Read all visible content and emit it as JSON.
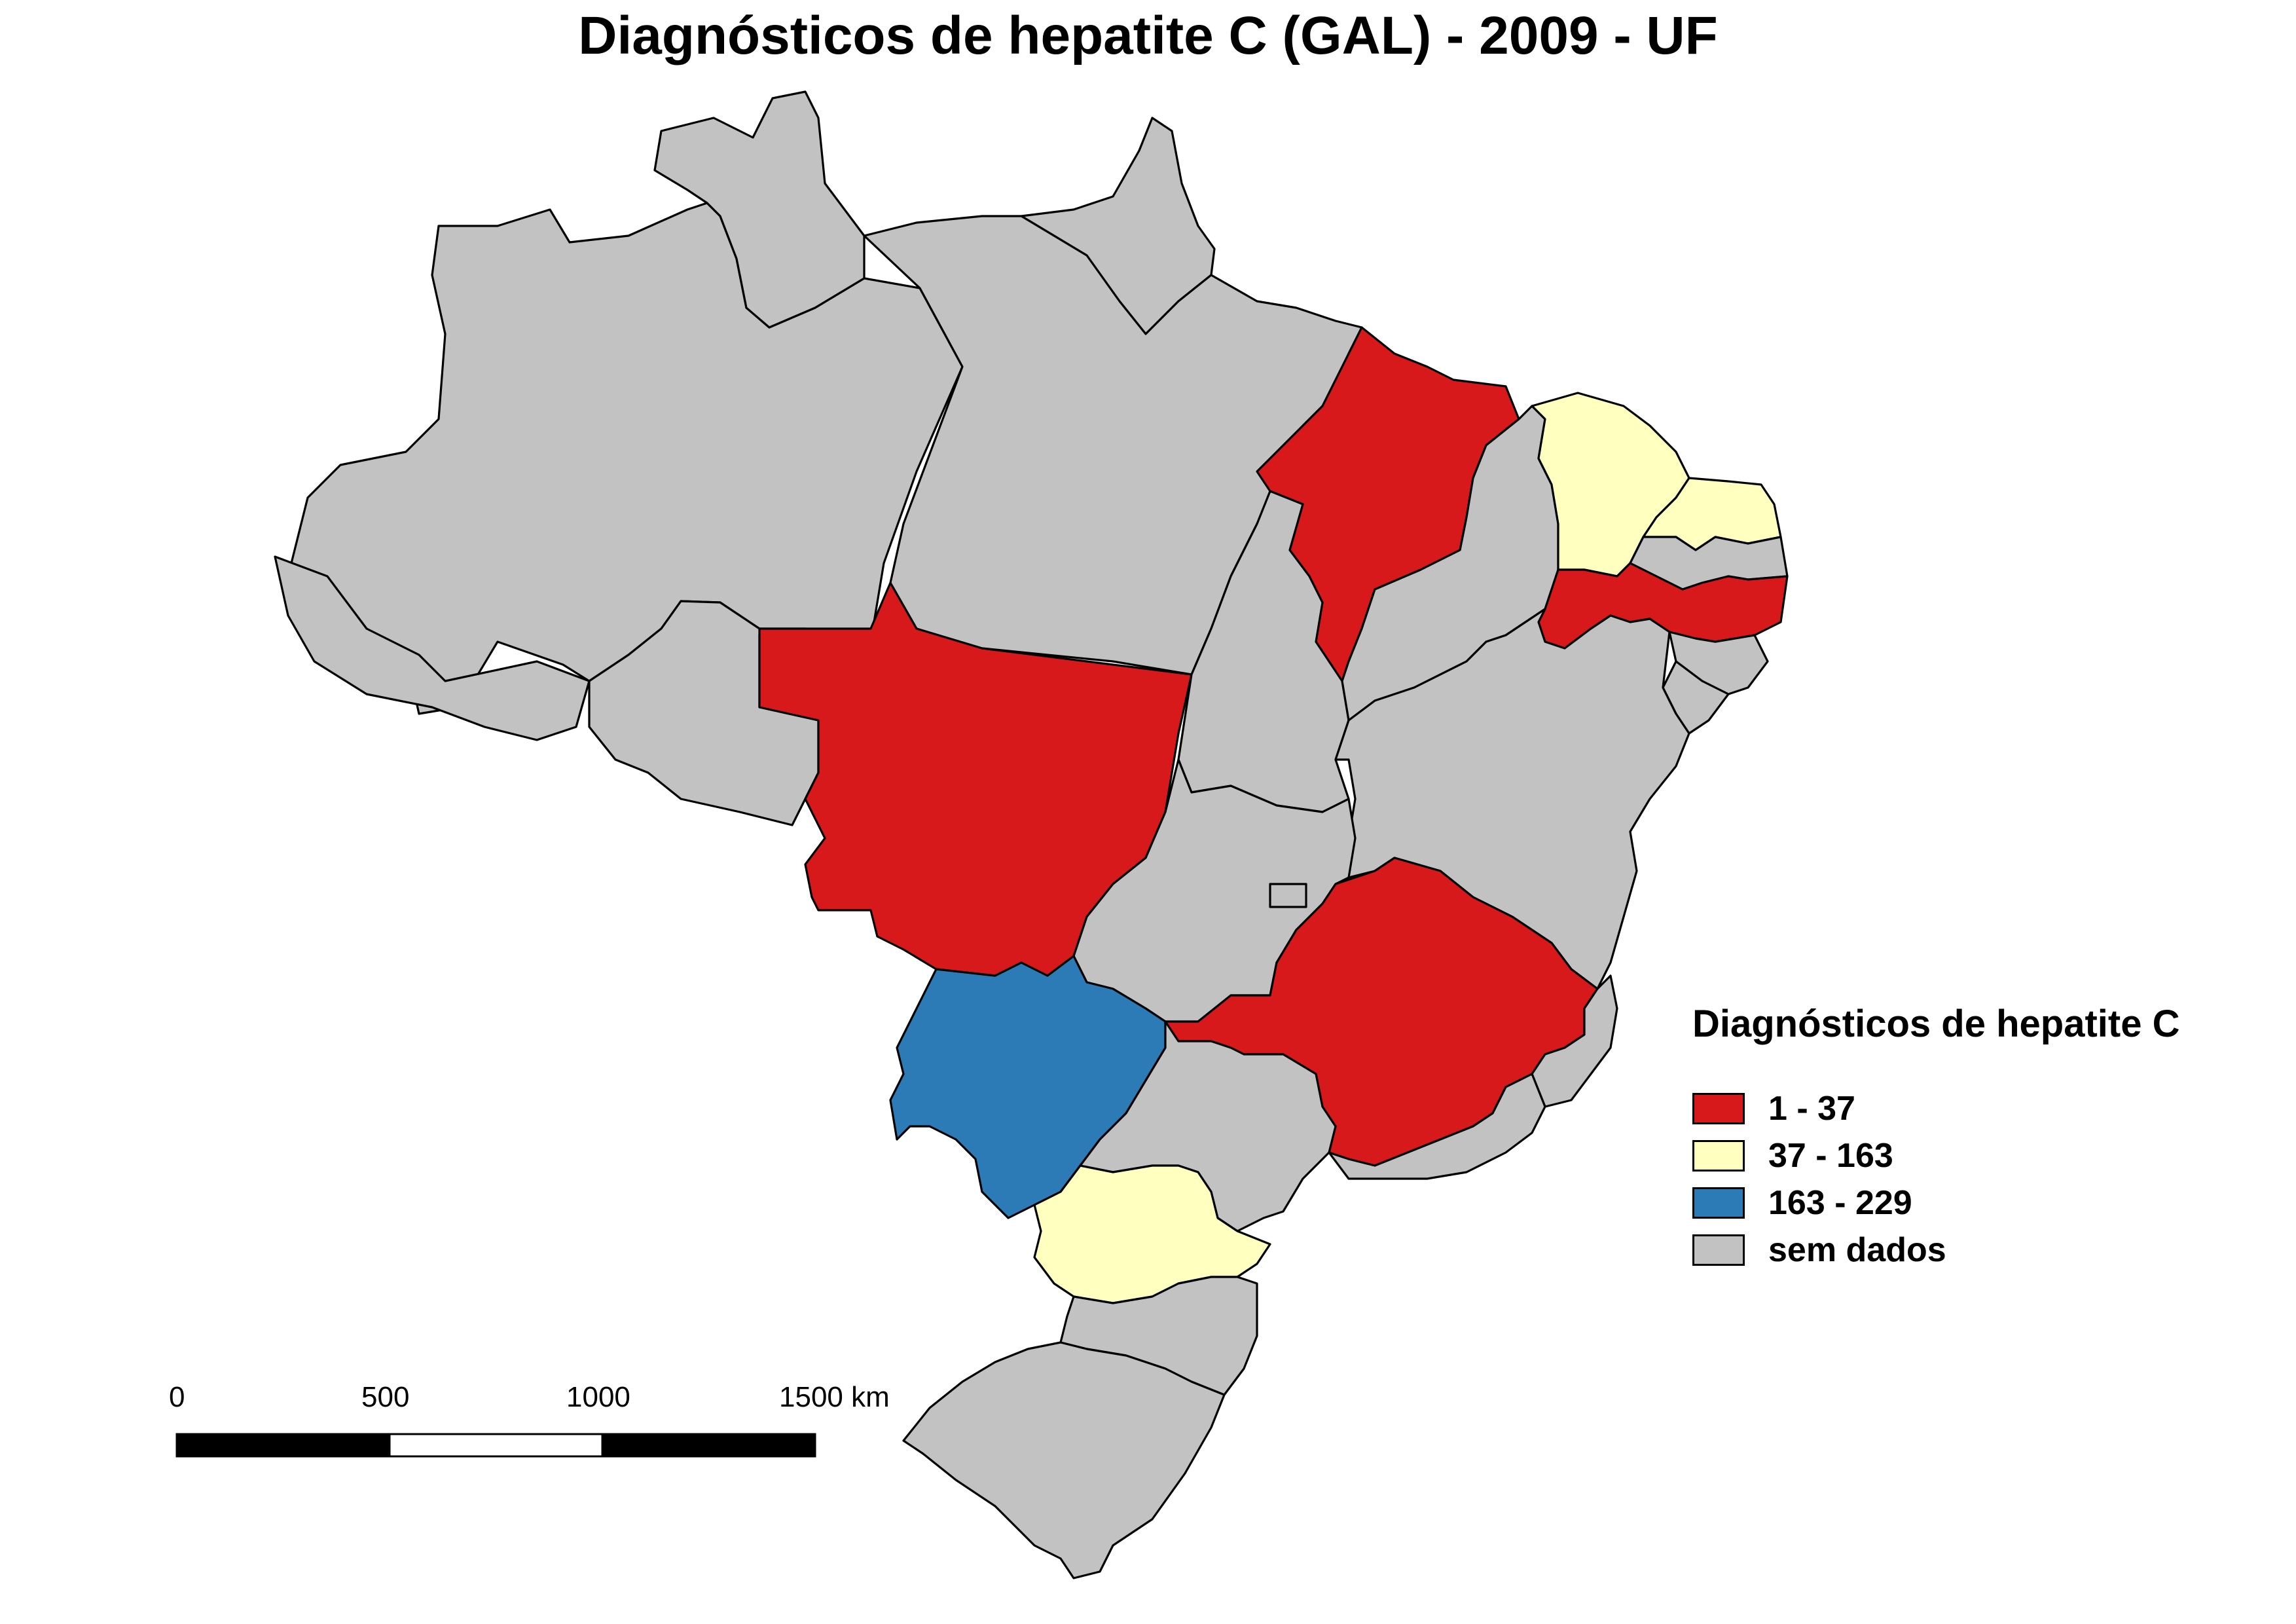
{
  "title": "Diagnósticos de hepatite C (GAL) - 2009 - UF",
  "legend": {
    "title": "Diagnósticos de hepatite C",
    "items": [
      {
        "label": "1 - 37",
        "color": "#d7191c"
      },
      {
        "label": "37 - 163",
        "color": "#ffffbf"
      },
      {
        "label": "163 - 229",
        "color": "#2c7bb6"
      },
      {
        "label": "sem dados",
        "color": "#c2c2c2"
      }
    ]
  },
  "scale_bar": {
    "labels": [
      "0",
      "500",
      "1000",
      "1500 km"
    ]
  },
  "states": [
    {
      "uf": "AM",
      "class": "sem dados"
    },
    {
      "uf": "RR",
      "class": "sem dados"
    },
    {
      "uf": "AP",
      "class": "sem dados"
    },
    {
      "uf": "PA",
      "class": "sem dados"
    },
    {
      "uf": "AC",
      "class": "sem dados"
    },
    {
      "uf": "RO",
      "class": "sem dados"
    },
    {
      "uf": "MT",
      "class": "1 - 37"
    },
    {
      "uf": "MA",
      "class": "1 - 37"
    },
    {
      "uf": "TO",
      "class": "sem dados"
    },
    {
      "uf": "PI",
      "class": "sem dados"
    },
    {
      "uf": "CE",
      "class": "37 - 163"
    },
    {
      "uf": "RN",
      "class": "37 - 163"
    },
    {
      "uf": "PB",
      "class": "sem dados"
    },
    {
      "uf": "PE",
      "class": "1 - 37"
    },
    {
      "uf": "AL",
      "class": "sem dados"
    },
    {
      "uf": "SE",
      "class": "sem dados"
    },
    {
      "uf": "BA",
      "class": "sem dados"
    },
    {
      "uf": "GO",
      "class": "sem dados"
    },
    {
      "uf": "DF",
      "class": "sem dados"
    },
    {
      "uf": "MG",
      "class": "1 - 37"
    },
    {
      "uf": "ES",
      "class": "sem dados"
    },
    {
      "uf": "MS",
      "class": "163 - 229"
    },
    {
      "uf": "SP",
      "class": "sem dados"
    },
    {
      "uf": "RJ",
      "class": "sem dados"
    },
    {
      "uf": "PR",
      "class": "37 - 163"
    },
    {
      "uf": "SC",
      "class": "sem dados"
    },
    {
      "uf": "RS",
      "class": "sem dados"
    }
  ]
}
